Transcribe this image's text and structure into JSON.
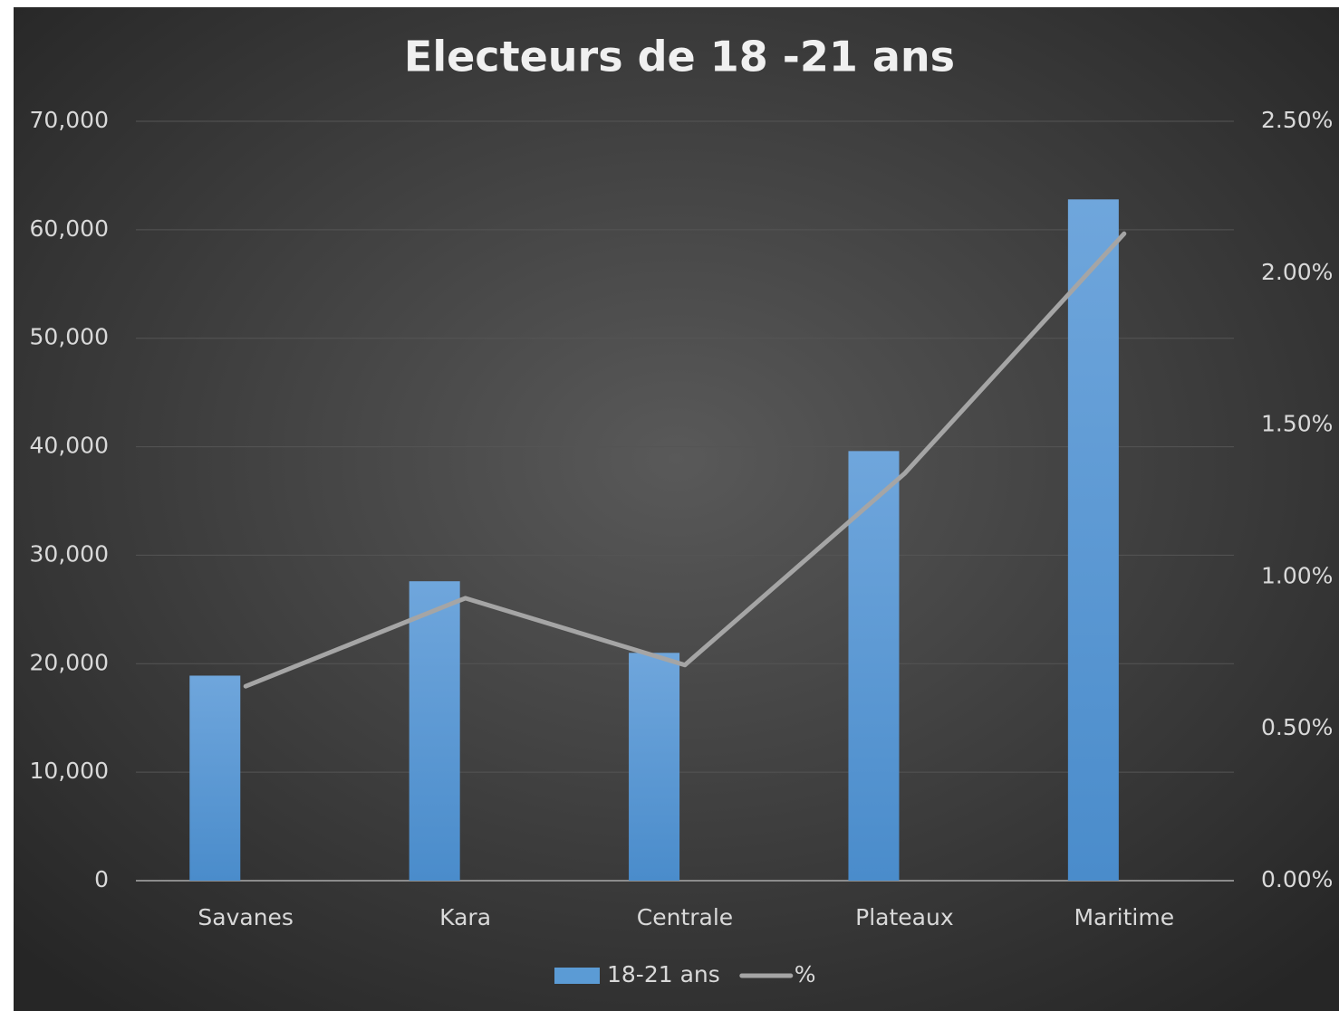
{
  "chart_data": {
    "type": "bar",
    "title": "Electeurs de 18 -21 ans",
    "categories": [
      "Savanes",
      "Kara",
      "Centrale",
      "Plateaux",
      "Maritime"
    ],
    "series": [
      {
        "name": "18-21 ans",
        "color": "#5b9bd5",
        "type": "bar",
        "values": [
          18900,
          27600,
          21000,
          39600,
          62800
        ]
      },
      {
        "name": "%",
        "color": "#a5a5a5",
        "type": "line",
        "axis": "y2",
        "values": [
          0.64,
          0.93,
          0.71,
          1.34,
          2.13
        ]
      }
    ],
    "ylim": [
      0,
      70000
    ],
    "yticks": [
      0,
      {
        "value": 10000,
        "label": "10,000"
      },
      {
        "value": 20000,
        "label": "20,000"
      },
      {
        "value": 30000,
        "label": "30,000"
      },
      {
        "value": 40000,
        "label": "40,000"
      },
      {
        "value": 50000,
        "label": "50,000"
      },
      {
        "value": 60000,
        "label": "60,000"
      },
      {
        "value": 70000,
        "label": "70,000"
      }
    ],
    "y2lim": [
      0,
      2.5
    ],
    "y2ticks": [
      {
        "value": 0,
        "label": "0.00%"
      },
      {
        "value": 0.5,
        "label": "0.50%"
      },
      {
        "value": 1,
        "label": "1.00%"
      },
      {
        "value": 1.5,
        "label": "1.50%"
      },
      {
        "value": 2,
        "label": "2.00%"
      },
      {
        "value": 2.5,
        "label": "2.50%"
      }
    ],
    "grid": true,
    "legend": "bottom"
  }
}
